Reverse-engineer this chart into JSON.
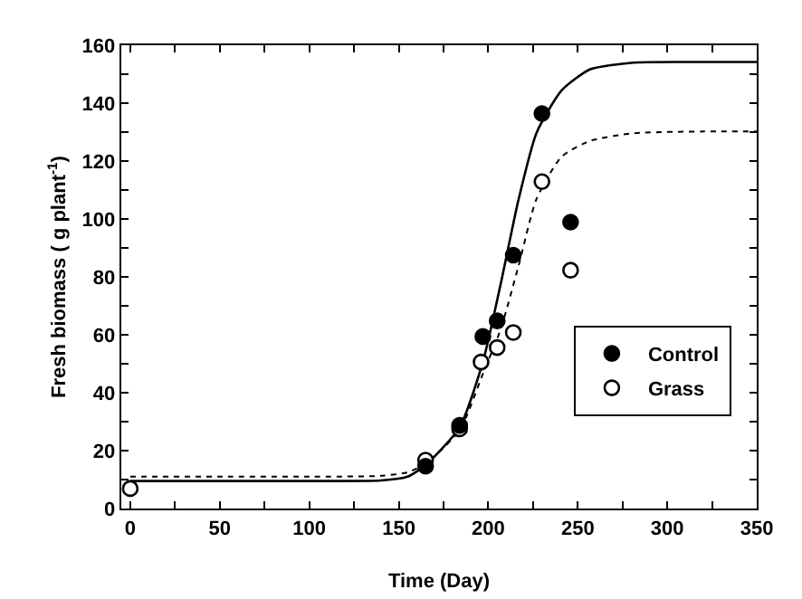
{
  "chart_data": {
    "type": "scatter",
    "xlabel": "Time (Day)",
    "ylabel": "Fresh biomass ( g plant$^{-1}$)",
    "xlim": [
      -5,
      350
    ],
    "ylim": [
      0,
      160
    ],
    "xticks": [
      0,
      {
        "value": 25,
        "label": null
      },
      50,
      {
        "value": 75,
        "label": null
      },
      100,
      {
        "value": 125,
        "label": null
      },
      150,
      {
        "value": 175,
        "label": null
      },
      200,
      {
        "value": 225,
        "label": null
      },
      250,
      {
        "value": 275,
        "label": null
      },
      300,
      {
        "value": 325,
        "label": null
      },
      350
    ],
    "yticks": [
      0,
      {
        "value": 10,
        "label": null
      },
      20,
      {
        "value": 30,
        "label": null
      },
      40,
      {
        "value": 50,
        "label": null
      },
      60,
      {
        "value": 70,
        "label": null
      },
      80,
      {
        "value": 90,
        "label": null
      },
      100,
      {
        "value": 110,
        "label": null
      },
      120,
      {
        "value": 130,
        "label": null
      },
      140,
      {
        "value": 150,
        "label": null
      },
      160
    ],
    "grid": false,
    "legend": "bottom right",
    "series": [
      {
        "name": "Control",
        "marker": "circle",
        "color": "#000000",
        "x": [
          165,
          184,
          197,
          205,
          214,
          230,
          246
        ],
        "values": [
          14.6,
          28.7,
          59.4,
          64.8,
          87.5,
          136.4,
          98.9
        ]
      },
      {
        "name": "Grass",
        "marker": "circle",
        "color": "#ffffff",
        "x": [
          0,
          165,
          184,
          196,
          205,
          214,
          230,
          246
        ],
        "values": [
          6.9,
          16.7,
          27.5,
          50.6,
          55.6,
          60.8,
          112.9,
          82.3
        ]
      },
      {
        "type": "line",
        "line_style": "solid",
        "color": "#000000",
        "x": [
          0,
          50,
          100,
          140,
          155,
          165,
          184,
          197,
          207,
          217,
          227,
          241,
          257,
          281,
          320,
          350
        ],
        "values": [
          9.5,
          9.5,
          9.5,
          9.7,
          11,
          15,
          28,
          50.6,
          77.7,
          106.9,
          129.8,
          144.4,
          151.7,
          154,
          154.2,
          154.2
        ]
      },
      {
        "type": "line",
        "line_style": "dotted",
        "color": "#000000",
        "x": [
          0,
          50,
          100,
          140,
          155,
          165,
          184,
          197,
          207,
          217,
          227,
          241,
          257,
          281,
          320,
          350
        ],
        "values": [
          11,
          11,
          11,
          11.3,
          12.5,
          15.5,
          27,
          46.5,
          62,
          84,
          107,
          121.5,
          127,
          129.6,
          130.2,
          130.2
        ]
      }
    ]
  }
}
